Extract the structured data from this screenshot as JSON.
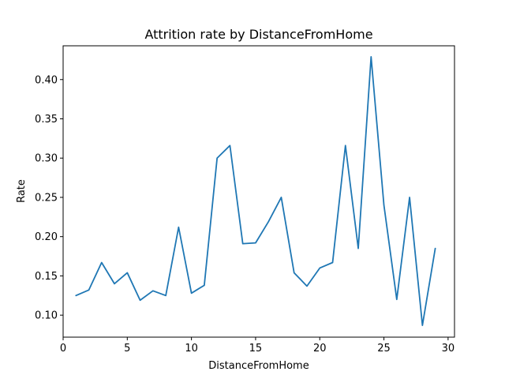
{
  "chart_data": {
    "type": "line",
    "title": "Attrition rate by DistanceFromHome",
    "xlabel": "DistanceFromHome",
    "ylabel": "Rate",
    "xlim": [
      0,
      30.5
    ],
    "ylim": [
      0.072,
      0.443
    ],
    "xticks": [
      0,
      5,
      10,
      15,
      20,
      25,
      30
    ],
    "yticks": [
      0.1,
      0.15,
      0.2,
      0.25,
      0.3,
      0.35,
      0.4
    ],
    "ytick_labels": [
      "0.10",
      "0.15",
      "0.20",
      "0.25",
      "0.30",
      "0.35",
      "0.40"
    ],
    "grid": false,
    "x": [
      1,
      2,
      3,
      4,
      5,
      6,
      7,
      8,
      9,
      10,
      11,
      12,
      13,
      14,
      15,
      16,
      17,
      18,
      19,
      20,
      21,
      22,
      23,
      24,
      25,
      26,
      27,
      28,
      29
    ],
    "values": [
      0.125,
      0.132,
      0.167,
      0.14,
      0.154,
      0.119,
      0.131,
      0.125,
      0.212,
      0.128,
      0.138,
      0.3,
      0.316,
      0.191,
      0.192,
      0.219,
      0.25,
      0.154,
      0.137,
      0.16,
      0.167,
      0.316,
      0.185,
      0.429,
      0.24,
      0.12,
      0.25,
      0.087,
      0.185
    ],
    "color": "#1f77b4"
  }
}
